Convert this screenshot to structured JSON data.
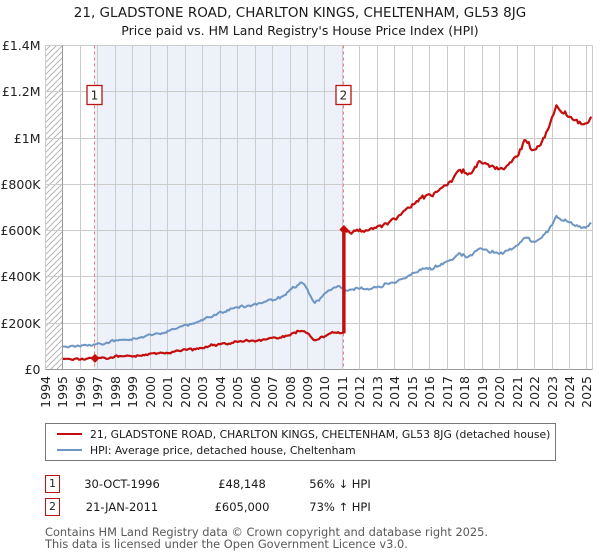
{
  "title": "21, GLADSTONE ROAD, CHARLTON KINGS, CHELTENHAM, GL53 8JG",
  "subtitle": "Price paid vs. HM Land Registry's House Price Index (HPI)",
  "footer": {
    "line1": "Contains HM Land Registry data © Crown copyright and database right 2025.",
    "line2": "This data is licensed under the Open Government Licence v3.0."
  },
  "chart_data": {
    "type": "line",
    "x_axis": {
      "ticks": [
        1994,
        1995,
        1996,
        1997,
        1998,
        1999,
        2000,
        2001,
        2002,
        2003,
        2004,
        2005,
        2006,
        2007,
        2008,
        2009,
        2010,
        2011,
        2012,
        2013,
        2014,
        2015,
        2016,
        2017,
        2018,
        2019,
        2020,
        2021,
        2022,
        2023,
        2024,
        2025
      ],
      "range": [
        1994,
        2025.3
      ]
    },
    "y_axis": {
      "range": [
        0,
        1400000
      ],
      "ticks": [
        {
          "v": 0,
          "label": "£0"
        },
        {
          "v": 200000,
          "label": "£200K"
        },
        {
          "v": 400000,
          "label": "£400K"
        },
        {
          "v": 600000,
          "label": "£600K"
        },
        {
          "v": 800000,
          "label": "£800K"
        },
        {
          "v": 1000000,
          "label": "£1M"
        },
        {
          "v": 1200000,
          "label": "£1.2M"
        },
        {
          "v": 1400000,
          "label": "£1.4M"
        }
      ]
    },
    "series": [
      {
        "name": "21, GLADSTONE ROAD, CHARLTON KINGS, CHELTENHAM, GL53 8JG (detached house)",
        "color": "#c40d0d",
        "role": "price-paid-hpi-estimate"
      },
      {
        "name": "HPI: Average price, detached house, Cheltenham",
        "color": "#6e96c4",
        "role": "hpi-average",
        "anchors": [
          [
            1995.0,
            97000
          ],
          [
            1995.5,
            100000
          ],
          [
            1996.0,
            103500
          ],
          [
            1996.4,
            102500
          ],
          [
            1996.83,
            109000
          ],
          [
            1997.2,
            113000
          ],
          [
            1997.7,
            119500
          ],
          [
            1998.2,
            126000
          ],
          [
            1998.7,
            130500
          ],
          [
            1999.2,
            136000
          ],
          [
            1999.7,
            141500
          ],
          [
            2000.2,
            150000
          ],
          [
            2000.7,
            160000
          ],
          [
            2001.2,
            172000
          ],
          [
            2001.7,
            182000
          ],
          [
            2002.2,
            195000
          ],
          [
            2002.7,
            208000
          ],
          [
            2003.2,
            221000
          ],
          [
            2003.7,
            235000
          ],
          [
            2004.2,
            252000
          ],
          [
            2004.7,
            262000
          ],
          [
            2005.2,
            272000
          ],
          [
            2005.7,
            277000
          ],
          [
            2006.2,
            284000
          ],
          [
            2006.7,
            293000
          ],
          [
            2007.2,
            308000
          ],
          [
            2007.7,
            325000
          ],
          [
            2008.1,
            348000
          ],
          [
            2008.45,
            363000
          ],
          [
            2008.7,
            374000
          ],
          [
            2009.0,
            345000
          ],
          [
            2009.4,
            291000
          ],
          [
            2009.7,
            305000
          ],
          [
            2010.0,
            327000
          ],
          [
            2010.4,
            348000
          ],
          [
            2010.7,
            357000
          ],
          [
            2011.08,
            349000
          ],
          [
            2011.5,
            343000
          ],
          [
            2012.0,
            352000
          ],
          [
            2012.4,
            347000
          ],
          [
            2012.8,
            353000
          ],
          [
            2013.2,
            358000
          ],
          [
            2013.7,
            372000
          ],
          [
            2014.3,
            390000
          ],
          [
            2014.9,
            404000
          ],
          [
            2015.5,
            430000
          ],
          [
            2016.0,
            440000
          ],
          [
            2016.6,
            451000
          ],
          [
            2017.2,
            470000
          ],
          [
            2017.7,
            499000
          ],
          [
            2018.3,
            490000
          ],
          [
            2018.9,
            523000
          ],
          [
            2019.5,
            506000
          ],
          [
            2020.0,
            502000
          ],
          [
            2020.6,
            520000
          ],
          [
            2021.2,
            549000
          ],
          [
            2021.45,
            569000
          ],
          [
            2021.8,
            552000
          ],
          [
            2022.1,
            555000
          ],
          [
            2022.5,
            578000
          ],
          [
            2022.85,
            613000
          ],
          [
            2023.05,
            638000
          ],
          [
            2023.25,
            660000
          ],
          [
            2023.6,
            638000
          ],
          [
            2024.0,
            636000
          ],
          [
            2024.3,
            628000
          ],
          [
            2024.6,
            617000
          ],
          [
            2025.0,
            620000
          ],
          [
            2025.3,
            640000
          ]
        ]
      }
    ],
    "sales": [
      {
        "num": "1",
        "date": "30-OCT-1996",
        "year": 1996.83,
        "price": 48148,
        "price_label": "£48,148",
        "delta": "56% ↓ HPI"
      },
      {
        "num": "2",
        "date": "21-JAN-2011",
        "year": 2011.06,
        "price": 605000,
        "price_label": "£605,000",
        "delta": "73% ↑ HPI"
      }
    ],
    "colors": {
      "shade": "#edf1fa",
      "grid": "#cccccc",
      "axis": "#999999",
      "dash": "#f47c7c",
      "sale_box_border": "#b81414",
      "hatch": "#b5b5b5"
    }
  }
}
